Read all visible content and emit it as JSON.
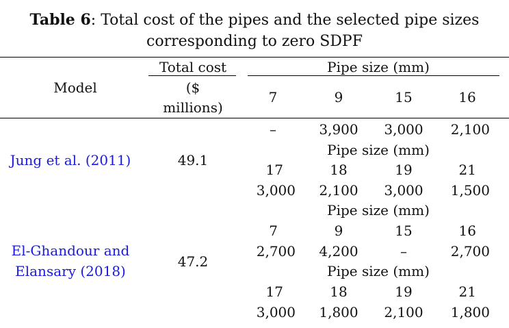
{
  "caption": {
    "label": "Table 6",
    "colon": ":",
    "line1": " Total cost of the pipes and the selected pipe sizes",
    "line2": "corresponding to zero SDPF"
  },
  "header": {
    "model": "Model",
    "total_cost_1": "Total cost",
    "total_cost_2": "($",
    "total_cost_3": "millions)",
    "pipe_size": "Pipe size (mm)",
    "sizes": [
      "7",
      "9",
      "15",
      "16"
    ]
  },
  "rows": [
    {
      "model": "Jung et al. (2011)",
      "cost": "49.1",
      "lines": {
        "l1": [
          "–",
          "3,900",
          "3,000",
          "2,100"
        ],
        "pipe_size": "Pipe size (mm)",
        "l3": [
          "17",
          "18",
          "19",
          "21"
        ],
        "l4": [
          "3,000",
          "2,100",
          "3,000",
          "1,500"
        ]
      }
    },
    {
      "model_1": "El-Ghandour and",
      "model_2": "Elansary (2018)",
      "cost": "47.2",
      "lines": {
        "pipe_size_a": "Pipe size (mm)",
        "l2": [
          "7",
          "9",
          "15",
          "16"
        ],
        "l3": [
          "2,700",
          "4,200",
          "–",
          "2,700"
        ],
        "pipe_size_b": "Pipe size (mm)",
        "l5": [
          "17",
          "18",
          "19",
          "21"
        ],
        "l6": [
          "3,000",
          "1,800",
          "2,100",
          "1,800"
        ]
      }
    }
  ]
}
